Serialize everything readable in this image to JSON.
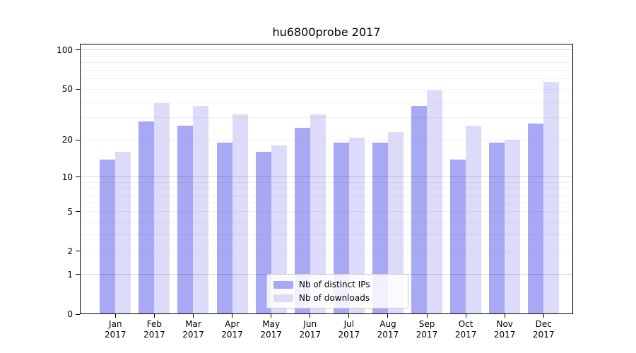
{
  "chart_data": {
    "type": "bar",
    "title": "hu6800probe 2017",
    "categories": [
      "Jan",
      "Feb",
      "Mar",
      "Apr",
      "May",
      "Jun",
      "Jul",
      "Aug",
      "Sep",
      "Oct",
      "Nov",
      "Dec"
    ],
    "category_year": "2017",
    "series": [
      {
        "name": "Nb of distinct IPs",
        "color": "#a8a8f5",
        "values": [
          14,
          28,
          26,
          19,
          16,
          25,
          19,
          19,
          37,
          14,
          19,
          27
        ]
      },
      {
        "name": "Nb of downloads",
        "color": "#dcdcfa",
        "values": [
          16,
          39,
          37,
          32,
          18,
          32,
          21,
          23,
          49,
          26,
          20,
          57
        ]
      }
    ],
    "yscale": "log1p",
    "ylabel": "",
    "xlabel": "",
    "ylim": [
      0,
      112
    ],
    "yticks": [
      0,
      1,
      2,
      5,
      10,
      20,
      50,
      100
    ],
    "grid_major": [
      1,
      10,
      100
    ],
    "grid_minor": [
      2,
      3,
      4,
      5,
      6,
      7,
      8,
      9,
      20,
      30,
      40,
      50,
      60,
      70,
      80,
      90
    ],
    "legend_position": "lower center",
    "background": "#ffffff",
    "spine_color": "#000000"
  }
}
